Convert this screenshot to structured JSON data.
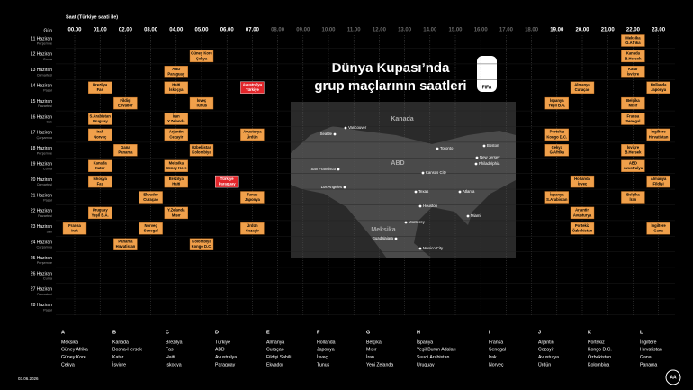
{
  "header": {
    "time_note": "Saat (Türkiye saati ile)",
    "day_label": "Gün",
    "title_line1": "Dünya Kupası’nda",
    "title_line2": "grup maçlarının saatleri",
    "logo": "FIFA"
  },
  "hours": [
    "00.00",
    "01.00",
    "02.00",
    "03.00",
    "04.00",
    "05.00",
    "06.00",
    "07.00",
    "08.00",
    "09.00",
    "10.00",
    "11.00",
    "12.00",
    "13.00",
    "14.00",
    "15.00",
    "16.00",
    "17.00",
    "18.00",
    "19.00",
    "20.00",
    "21.00",
    "22.00",
    "23.00"
  ],
  "days": [
    {
      "date": "11 Haziran",
      "weekday": "Perşembe",
      "matches": [
        {
          "hour": "22.00",
          "teams": [
            "Meksika",
            "G.Afrika"
          ]
        }
      ]
    },
    {
      "date": "12 Haziran",
      "weekday": "Cuma",
      "matches": [
        {
          "hour": "05.00",
          "teams": [
            "Güney Kore",
            "Çekya"
          ]
        },
        {
          "hour": "22.00",
          "teams": [
            "Kanada",
            "B.Hersek"
          ]
        }
      ]
    },
    {
      "date": "13 Haziran",
      "weekday": "Cumartesi",
      "matches": [
        {
          "hour": "04.00",
          "teams": [
            "ABD",
            "Paraguay"
          ]
        },
        {
          "hour": "22.00",
          "teams": [
            "Katar",
            "İsviçre"
          ]
        }
      ]
    },
    {
      "date": "14 Haziran",
      "weekday": "Pazar",
      "matches": [
        {
          "hour": "01.00",
          "teams": [
            "Brezilya",
            "Fas"
          ]
        },
        {
          "hour": "04.00",
          "teams": [
            "Haiti",
            "İskoçya"
          ]
        },
        {
          "hour": "07.00",
          "teams": [
            "Avustralya",
            "Türkiye"
          ],
          "highlight": true
        },
        {
          "hour": "20.00",
          "teams": [
            "Almanya",
            "Curaçao"
          ]
        },
        {
          "hour": "23.00",
          "teams": [
            "Hollanda",
            "Japonya"
          ]
        }
      ]
    },
    {
      "date": "15 Haziran",
      "weekday": "Pazartesi",
      "matches": [
        {
          "hour": "02.00",
          "teams": [
            "Fildişi",
            "Ekvador"
          ]
        },
        {
          "hour": "05.00",
          "teams": [
            "İsveç",
            "Tunus"
          ]
        },
        {
          "hour": "19.00",
          "teams": [
            "İspanya",
            "Yeşil B.A."
          ]
        },
        {
          "hour": "22.00",
          "teams": [
            "Belçika",
            "Mısır"
          ]
        }
      ]
    },
    {
      "date": "16 Haziran",
      "weekday": "Salı",
      "matches": [
        {
          "hour": "01.00",
          "teams": [
            "S.Arabistan",
            "Uruguay"
          ]
        },
        {
          "hour": "04.00",
          "teams": [
            "İran",
            "Y.Zelanda"
          ]
        },
        {
          "hour": "22.00",
          "teams": [
            "Fransa",
            "Senegal"
          ]
        }
      ]
    },
    {
      "date": "17 Haziran",
      "weekday": "Çarşamba",
      "matches": [
        {
          "hour": "01.00",
          "teams": [
            "Irak",
            "Norveç"
          ]
        },
        {
          "hour": "04.00",
          "teams": [
            "Arjantin",
            "Cezayir"
          ]
        },
        {
          "hour": "07.00",
          "teams": [
            "Avusturya",
            "Ürdün"
          ]
        },
        {
          "hour": "19.00",
          "teams": [
            "Portekiz",
            "Kongo D.C."
          ]
        },
        {
          "hour": "23.00",
          "teams": [
            "İngiltere",
            "Hırvatistan"
          ]
        }
      ]
    },
    {
      "date": "18 Haziran",
      "weekday": "Perşembe",
      "matches": [
        {
          "hour": "02.00",
          "teams": [
            "Gana",
            "Panama"
          ]
        },
        {
          "hour": "05.00",
          "teams": [
            "Özbekistan",
            "Kolombiya"
          ]
        },
        {
          "hour": "19.00",
          "teams": [
            "Çekya",
            "G.Afrika"
          ]
        },
        {
          "hour": "22.00",
          "teams": [
            "İsviçre",
            "B.Hersek"
          ]
        }
      ]
    },
    {
      "date": "19 Haziran",
      "weekday": "Cuma",
      "matches": [
        {
          "hour": "01.00",
          "teams": [
            "Kanada",
            "Katar"
          ]
        },
        {
          "hour": "04.00",
          "teams": [
            "Meksika",
            "Güney Kore"
          ]
        },
        {
          "hour": "22.00",
          "teams": [
            "ABD",
            "Avustralya"
          ]
        }
      ]
    },
    {
      "date": "20 Haziran",
      "weekday": "Cumartesi",
      "matches": [
        {
          "hour": "01.00",
          "teams": [
            "İskoçya",
            "Fas"
          ]
        },
        {
          "hour": "04.00",
          "teams": [
            "Brezilya",
            "Haiti"
          ]
        },
        {
          "hour": "06.00",
          "teams": [
            "Türkiye",
            "Paraguay"
          ],
          "highlight": true
        },
        {
          "hour": "20.00",
          "teams": [
            "Hollanda",
            "İsveç"
          ]
        },
        {
          "hour": "23.00",
          "teams": [
            "Almanya",
            "Fildişi"
          ]
        }
      ]
    },
    {
      "date": "21 Haziran",
      "weekday": "Pazar",
      "matches": [
        {
          "hour": "03.00",
          "teams": [
            "Ekvador",
            "Curaçao"
          ]
        },
        {
          "hour": "07.00",
          "teams": [
            "Tunus",
            "Japonya"
          ]
        },
        {
          "hour": "19.00",
          "teams": [
            "İspanya",
            "S.Arabistan"
          ]
        },
        {
          "hour": "22.00",
          "teams": [
            "Belçika",
            "İran"
          ]
        }
      ]
    },
    {
      "date": "22 Haziran",
      "weekday": "Pazartesi",
      "matches": [
        {
          "hour": "01.00",
          "teams": [
            "Uruguay",
            "Yeşil B.A."
          ]
        },
        {
          "hour": "04.00",
          "teams": [
            "Y.Zelanda",
            "Mısır"
          ]
        },
        {
          "hour": "20.00",
          "teams": [
            "Arjantin",
            "Avusturya"
          ]
        }
      ]
    },
    {
      "date": "23 Haziran",
      "weekday": "Salı",
      "matches": [
        {
          "hour": "00.00",
          "teams": [
            "Fransa",
            "Irak"
          ]
        },
        {
          "hour": "03.00",
          "teams": [
            "Norveç",
            "Senegal"
          ]
        },
        {
          "hour": "07.00",
          "teams": [
            "Ürdün",
            "Cezayir"
          ]
        },
        {
          "hour": "20.00",
          "teams": [
            "Portekiz",
            "Özbekistan"
          ]
        },
        {
          "hour": "23.00",
          "teams": [
            "İngiltere",
            "Gana"
          ]
        }
      ]
    },
    {
      "date": "24 Haziran",
      "weekday": "Çarşamba",
      "matches": [
        {
          "hour": "02.00",
          "teams": [
            "Panama",
            "Hırvatistan"
          ]
        },
        {
          "hour": "05.00",
          "teams": [
            "Kolombiya",
            "Kongo D.C."
          ]
        }
      ]
    },
    {
      "date": "25 Haziran",
      "weekday": "Perşembe",
      "matches": []
    },
    {
      "date": "26 Haziran",
      "weekday": "Cuma",
      "matches": []
    },
    {
      "date": "27 Haziran",
      "weekday": "Cumartesi",
      "matches": []
    },
    {
      "date": "28 Haziran",
      "weekday": "Pazar",
      "matches": []
    }
  ],
  "map": {
    "countries": [
      "Kanada",
      "ABD",
      "Meksika"
    ],
    "cities": [
      "Vancouver",
      "Seattle",
      "Toronto",
      "Boston",
      "New Jersey",
      "Philadelphia",
      "San Francisco",
      "Kansas City",
      "Los Angeles",
      "Texas",
      "Atlanta",
      "Houston",
      "Miami",
      "Monterey",
      "Guadalajara",
      "Mexico City"
    ]
  },
  "groups": [
    {
      "letter": "A",
      "teams": [
        "Meksika",
        "Güney Afrika",
        "Güney Kore",
        "Çekya"
      ]
    },
    {
      "letter": "B",
      "teams": [
        "Kanada",
        "Bosna-Hersek",
        "Katar",
        "İsviçre"
      ]
    },
    {
      "letter": "C",
      "teams": [
        "Brezilya",
        "Fas",
        "Haiti",
        "İskoçya"
      ]
    },
    {
      "letter": "D",
      "teams": [
        "Türkiye",
        "ABD",
        "Avustralya",
        "Paraguay"
      ]
    },
    {
      "letter": "E",
      "teams": [
        "Almanya",
        "Curaçao",
        "Fildişi Sahili",
        "Ekvador"
      ]
    },
    {
      "letter": "F",
      "teams": [
        "Hollanda",
        "Japonya",
        "İsveç",
        "Tunus"
      ]
    },
    {
      "letter": "G",
      "teams": [
        "Belçika",
        "Mısır",
        "İran",
        "Yeni Zelanda"
      ]
    },
    {
      "letter": "H",
      "teams": [
        "İspanya",
        "Yeşil Burun Adaları",
        "Suudi Arabistan",
        "Uruguay"
      ]
    },
    {
      "letter": "I",
      "teams": [
        "Fransa",
        "Senegal",
        "Irak",
        "Norveç"
      ]
    },
    {
      "letter": "J",
      "teams": [
        "Arjantin",
        "Cezayir",
        "Avusturya",
        "Ürdün"
      ]
    },
    {
      "letter": "K",
      "teams": [
        "Portekiz",
        "Kongo D.C.",
        "Özbekistan",
        "Kolombiya"
      ]
    },
    {
      "letter": "L",
      "teams": [
        "İngiltere",
        "Hırvatistan",
        "Gana",
        "Panama"
      ]
    }
  ],
  "footer": {
    "date": "03.06.2026",
    "source": "AA"
  }
}
